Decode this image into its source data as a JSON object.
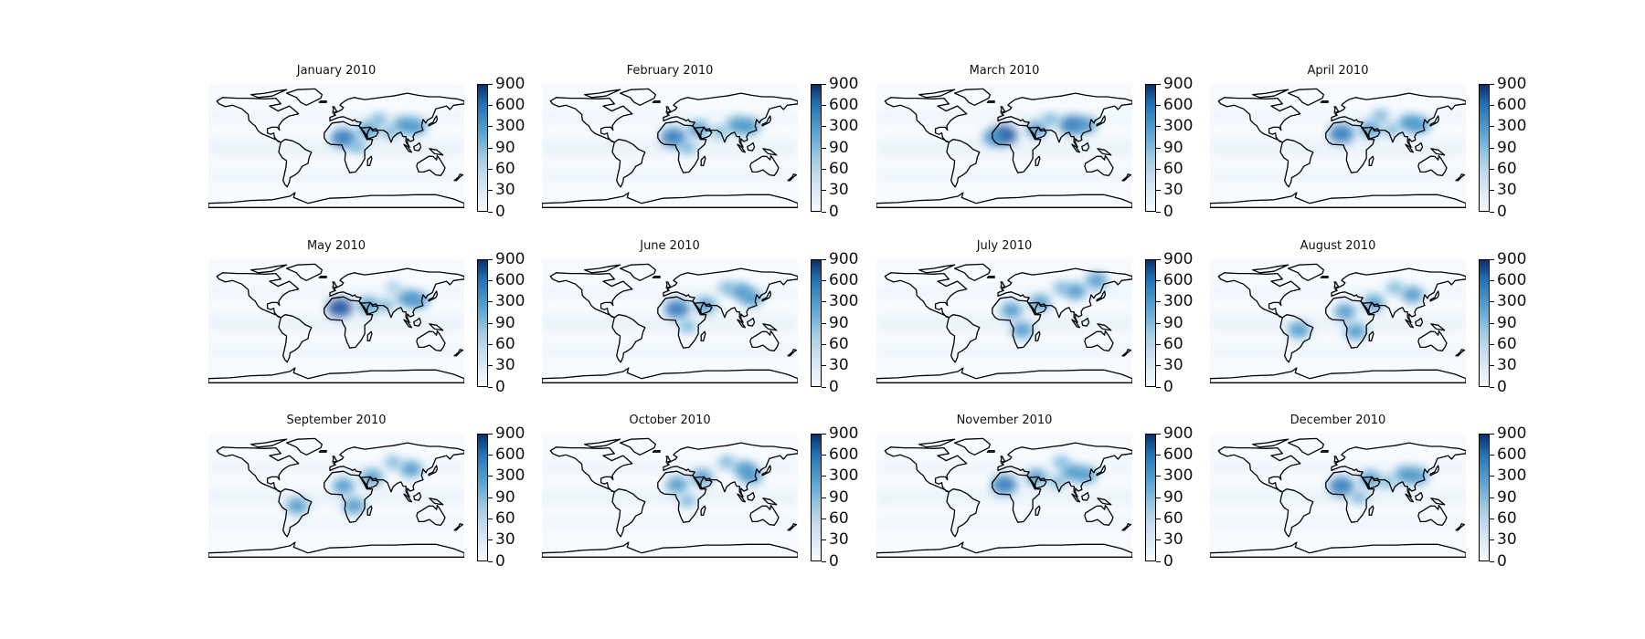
{
  "chart_data": {
    "type": "heatmap",
    "layout": {
      "rows": 3,
      "cols": 4
    },
    "colormap": "Blues",
    "colorbar_ticks": [
      "0",
      "30",
      "60",
      "90",
      "300",
      "600",
      "900"
    ],
    "colors": {
      "low": "#f7fbff",
      "high": "#08306b",
      "coastline": "#000000"
    },
    "panels": [
      {
        "title": "January 2010",
        "hotspots": [
          {
            "lon": 10,
            "lat": 14,
            "v": 600
          },
          {
            "lon": 45,
            "lat": 25,
            "v": 300
          },
          {
            "lon": 95,
            "lat": 32,
            "v": 300
          },
          {
            "lon": 112,
            "lat": 30,
            "v": 300
          },
          {
            "lon": 75,
            "lat": 22,
            "v": 90
          },
          {
            "lon": 30,
            "lat": 2,
            "v": 90
          },
          {
            "lon": 60,
            "lat": 40,
            "v": 90
          }
        ]
      },
      {
        "title": "February 2010",
        "hotspots": [
          {
            "lon": 5,
            "lat": 15,
            "v": 600
          },
          {
            "lon": 40,
            "lat": 26,
            "v": 300
          },
          {
            "lon": 95,
            "lat": 32,
            "v": 300
          },
          {
            "lon": 112,
            "lat": 30,
            "v": 300
          },
          {
            "lon": 25,
            "lat": 0,
            "v": 90
          },
          {
            "lon": 70,
            "lat": 22,
            "v": 90
          }
        ]
      },
      {
        "title": "March 2010",
        "hotspots": [
          {
            "lon": 0,
            "lat": 18,
            "v": 900
          },
          {
            "lon": -15,
            "lat": 15,
            "v": 300
          },
          {
            "lon": 45,
            "lat": 26,
            "v": 300
          },
          {
            "lon": 95,
            "lat": 32,
            "v": 600
          },
          {
            "lon": 115,
            "lat": 32,
            "v": 300
          },
          {
            "lon": 65,
            "lat": 40,
            "v": 90
          }
        ]
      },
      {
        "title": "April 2010",
        "hotspots": [
          {
            "lon": 5,
            "lat": 20,
            "v": 600
          },
          {
            "lon": 45,
            "lat": 26,
            "v": 300
          },
          {
            "lon": 100,
            "lat": 35,
            "v": 300
          },
          {
            "lon": 115,
            "lat": 32,
            "v": 300
          },
          {
            "lon": 75,
            "lat": 25,
            "v": 90
          },
          {
            "lon": 60,
            "lat": 45,
            "v": 90
          }
        ]
      },
      {
        "title": "May 2010",
        "hotspots": [
          {
            "lon": 5,
            "lat": 22,
            "v": 900
          },
          {
            "lon": 45,
            "lat": 25,
            "v": 300
          },
          {
            "lon": 100,
            "lat": 35,
            "v": 300
          },
          {
            "lon": 115,
            "lat": 32,
            "v": 300
          },
          {
            "lon": 70,
            "lat": 25,
            "v": 90
          },
          {
            "lon": 80,
            "lat": 50,
            "v": 60
          }
        ]
      },
      {
        "title": "June 2010",
        "hotspots": [
          {
            "lon": 10,
            "lat": 20,
            "v": 600
          },
          {
            "lon": 50,
            "lat": 25,
            "v": 300
          },
          {
            "lon": 100,
            "lat": 45,
            "v": 300
          },
          {
            "lon": 115,
            "lat": 35,
            "v": 300
          },
          {
            "lon": 25,
            "lat": -5,
            "v": 90
          },
          {
            "lon": 80,
            "lat": 50,
            "v": 90
          }
        ]
      },
      {
        "title": "July 2010",
        "hotspots": [
          {
            "lon": 10,
            "lat": 18,
            "v": 300
          },
          {
            "lon": 50,
            "lat": 28,
            "v": 300
          },
          {
            "lon": 100,
            "lat": 45,
            "v": 300
          },
          {
            "lon": 130,
            "lat": 60,
            "v": 300
          },
          {
            "lon": 25,
            "lat": -10,
            "v": 300
          },
          {
            "lon": 80,
            "lat": 50,
            "v": 90
          }
        ]
      },
      {
        "title": "August 2010",
        "hotspots": [
          {
            "lon": 10,
            "lat": 16,
            "v": 300
          },
          {
            "lon": 50,
            "lat": 28,
            "v": 300
          },
          {
            "lon": 105,
            "lat": 40,
            "v": 300
          },
          {
            "lon": -55,
            "lat": -10,
            "v": 300
          },
          {
            "lon": 25,
            "lat": -12,
            "v": 300
          },
          {
            "lon": 80,
            "lat": 50,
            "v": 90
          }
        ]
      },
      {
        "title": "September 2010",
        "hotspots": [
          {
            "lon": 10,
            "lat": 16,
            "v": 300
          },
          {
            "lon": 50,
            "lat": 28,
            "v": 300
          },
          {
            "lon": 105,
            "lat": 40,
            "v": 300
          },
          {
            "lon": -55,
            "lat": -12,
            "v": 300
          },
          {
            "lon": 25,
            "lat": -12,
            "v": 300
          },
          {
            "lon": 80,
            "lat": 50,
            "v": 90
          }
        ]
      },
      {
        "title": "October 2010",
        "hotspots": [
          {
            "lon": 10,
            "lat": 18,
            "v": 300
          },
          {
            "lon": 45,
            "lat": 28,
            "v": 300
          },
          {
            "lon": 105,
            "lat": 40,
            "v": 300
          },
          {
            "lon": 115,
            "lat": 30,
            "v": 300
          },
          {
            "lon": 25,
            "lat": -5,
            "v": 90
          },
          {
            "lon": 80,
            "lat": 50,
            "v": 90
          }
        ]
      },
      {
        "title": "November 2010",
        "hotspots": [
          {
            "lon": 0,
            "lat": 18,
            "v": 600
          },
          {
            "lon": 45,
            "lat": 28,
            "v": 300
          },
          {
            "lon": 95,
            "lat": 35,
            "v": 300
          },
          {
            "lon": 115,
            "lat": 32,
            "v": 300
          },
          {
            "lon": 75,
            "lat": 22,
            "v": 90
          },
          {
            "lon": 80,
            "lat": 50,
            "v": 90
          }
        ]
      },
      {
        "title": "December 2010",
        "hotspots": [
          {
            "lon": 5,
            "lat": 16,
            "v": 600
          },
          {
            "lon": 45,
            "lat": 26,
            "v": 300
          },
          {
            "lon": 95,
            "lat": 32,
            "v": 300
          },
          {
            "lon": 112,
            "lat": 30,
            "v": 300
          },
          {
            "lon": 30,
            "lat": 0,
            "v": 90
          },
          {
            "lon": 70,
            "lat": 22,
            "v": 90
          }
        ]
      }
    ]
  }
}
